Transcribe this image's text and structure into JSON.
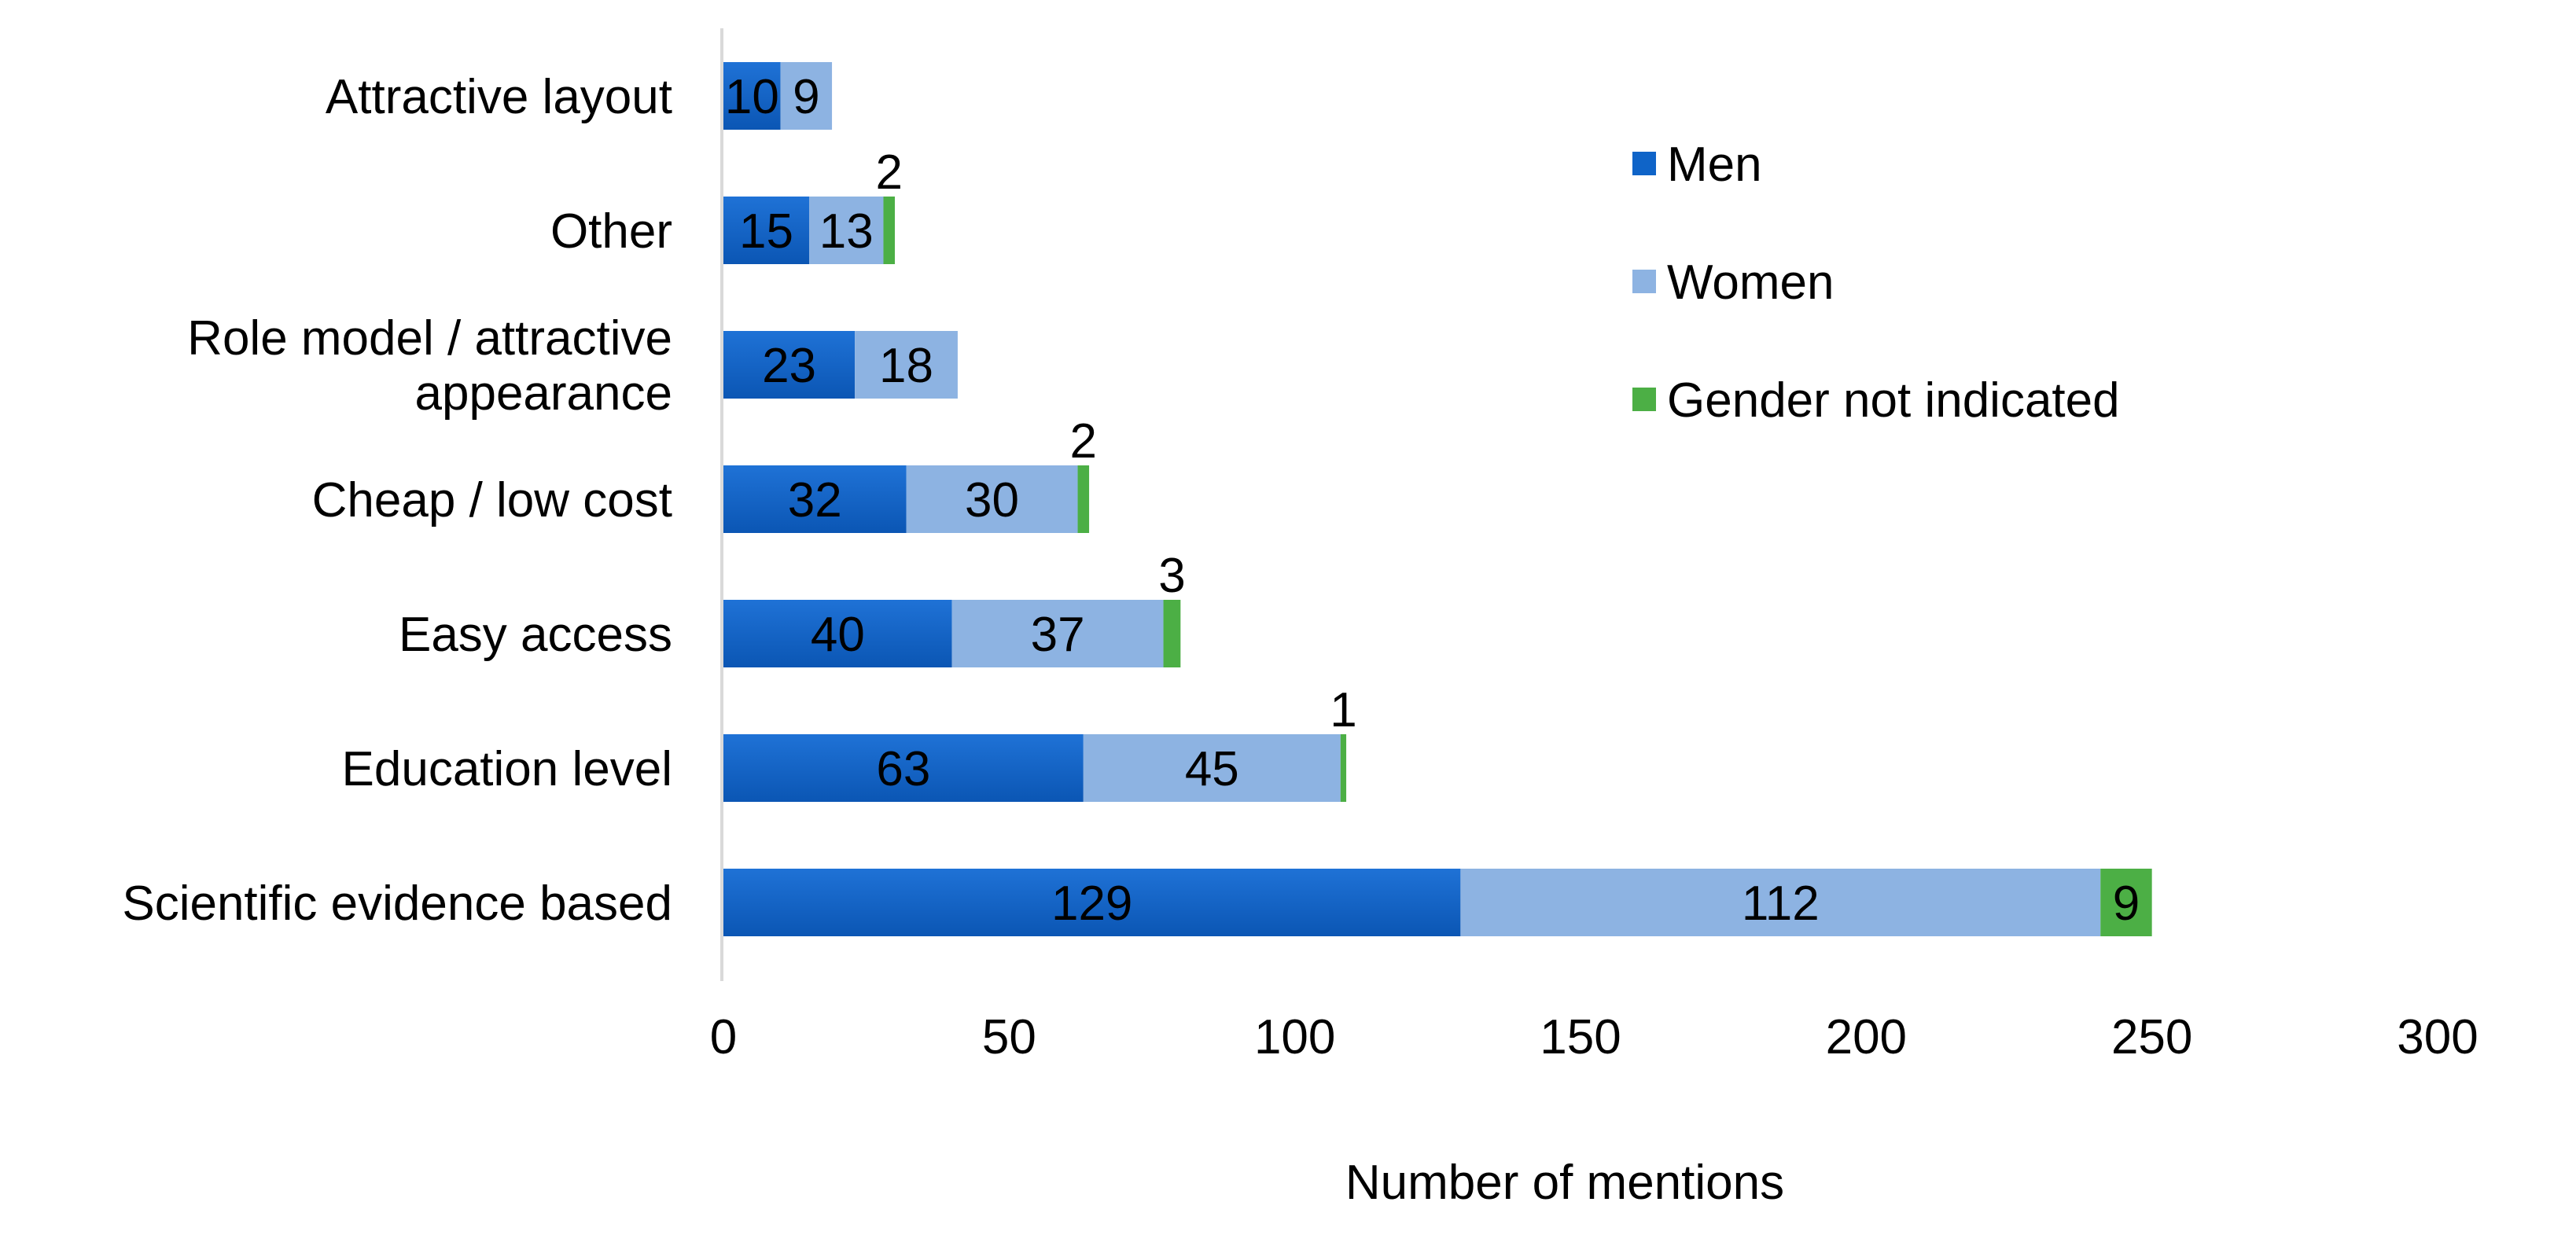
{
  "chart_data": {
    "type": "bar",
    "orientation": "horizontal",
    "stacked": true,
    "categories": [
      "Attractive layout",
      "Other",
      "Role model / attractive appearance",
      "Cheap / low cost",
      "Easy access",
      "Education level",
      "Scientific evidence based"
    ],
    "category_label_lines": [
      [
        "Attractive layout"
      ],
      [
        "Other"
      ],
      [
        "Role model / attractive",
        "appearance"
      ],
      [
        "Cheap / low cost"
      ],
      [
        "Easy access"
      ],
      [
        "Education level"
      ],
      [
        "Scientific evidence based"
      ]
    ],
    "series": [
      {
        "name": "Men",
        "color": "#0f64c8",
        "values": [
          10,
          15,
          23,
          32,
          40,
          63,
          129
        ],
        "labels": [
          "10",
          "15",
          "23",
          "32",
          "40",
          "63",
          "129"
        ]
      },
      {
        "name": "Women",
        "color": "#8db3e2",
        "values": [
          9,
          13,
          18,
          30,
          37,
          45,
          112
        ],
        "labels": [
          "9",
          "13",
          "18",
          "30",
          "37",
          "45",
          "112"
        ]
      },
      {
        "name": "Gender not indicated",
        "color": "#4caf45",
        "values": [
          0,
          2,
          0,
          2,
          3,
          1,
          9
        ],
        "labels": [
          "",
          "2",
          "",
          "2",
          "3",
          "1",
          "9"
        ]
      }
    ],
    "xlabel": "Number of mentions",
    "ylabel": "",
    "title": "",
    "xlim": [
      0,
      300
    ],
    "xticks": [
      "0",
      "50",
      "100",
      "150",
      "200",
      "250",
      "300"
    ],
    "grid": false,
    "legend_position": "right"
  }
}
